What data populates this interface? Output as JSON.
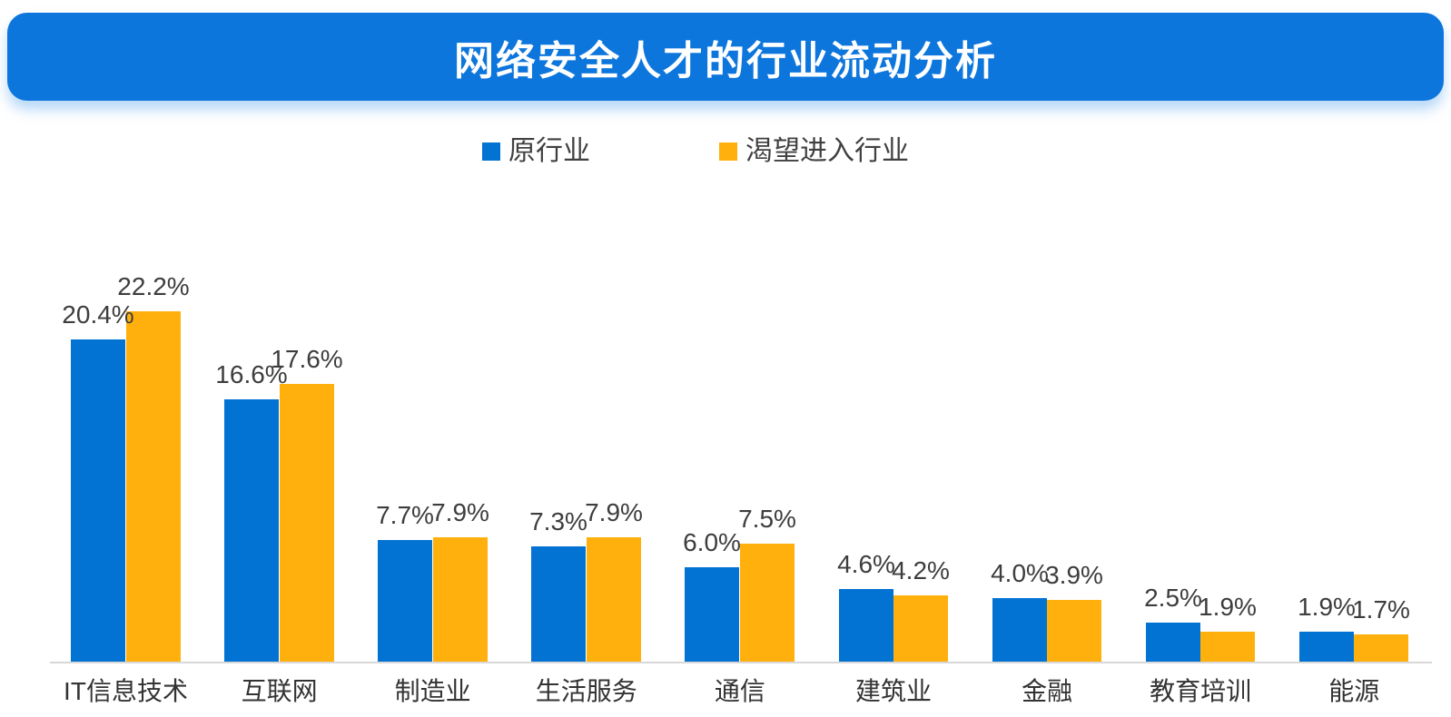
{
  "title": "网络安全人才的行业流动分析",
  "legend": {
    "items": [
      {
        "label": "原行业",
        "color": "#0273D2"
      },
      {
        "label": "渴望进入行业",
        "color": "#FFB00D"
      }
    ],
    "position": "top-center"
  },
  "colors": {
    "banner_background": "#0D76DD",
    "banner_text": "#FFFFFF",
    "series_blue": "#0273D2",
    "series_orange": "#FFB00D",
    "value_label_text": "#3D3D3D",
    "category_label_text": "#333333",
    "axis_line": "#D8D8D8",
    "page_background": "#FFFFFF"
  },
  "chart_data": {
    "type": "bar",
    "title": "网络安全人才的行业流动分析",
    "categories": [
      "IT信息技术",
      "互联网",
      "制造业",
      "生活服务",
      "通信",
      "建筑业",
      "金融",
      "教育培训",
      "能源"
    ],
    "series": [
      {
        "name": "原行业",
        "color": "#0273D2",
        "values": [
          20.4,
          16.6,
          7.7,
          7.3,
          6.0,
          4.6,
          4.0,
          2.5,
          1.9
        ],
        "labels": [
          "20.4%",
          "16.6%",
          "7.7%",
          "7.3%",
          "6.0%",
          "4.6%",
          "4.0%",
          "2.5%",
          "1.9%"
        ]
      },
      {
        "name": "渴望进入行业",
        "color": "#FFB00D",
        "values": [
          22.2,
          17.6,
          7.9,
          7.9,
          7.5,
          4.2,
          3.9,
          1.9,
          1.7
        ],
        "labels": [
          "22.2%",
          "17.6%",
          "7.9%",
          "7.9%",
          "7.5%",
          "4.2%",
          "3.9%",
          "1.9%",
          "1.7%"
        ]
      }
    ],
    "xlabel": "",
    "ylabel": "",
    "ylim": [
      0,
      24
    ],
    "value_suffix": "%",
    "grid": false,
    "data_labels": true,
    "legend_position": "top",
    "y_axis_visible": false,
    "x_axis_line_visible": true
  }
}
